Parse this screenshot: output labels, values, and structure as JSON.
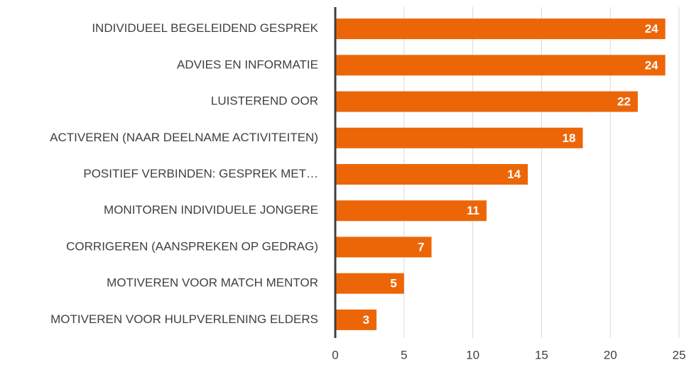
{
  "chart_data": {
    "type": "bar",
    "orientation": "horizontal",
    "categories": [
      "INDIVIDUEEL BEGELEIDEND GESPREK",
      "ADVIES EN INFORMATIE",
      "LUISTEREND OOR",
      "ACTIVEREN (NAAR DEELNAME ACTIVITEITEN)",
      "POSITIEF VERBINDEN: GESPREK MET…",
      "MONITOREN INDIVIDUELE JONGERE",
      "CORRIGEREN (AANSPREKEN OP GEDRAG)",
      "MOTIVEREN VOOR MATCH MENTOR",
      "MOTIVEREN VOOR HULPVERLENING ELDERS"
    ],
    "values": [
      24,
      24,
      22,
      18,
      14,
      11,
      7,
      5,
      3
    ],
    "color": "#ec6608",
    "xlim": [
      0,
      25
    ],
    "xticks": [
      0,
      5,
      10,
      15,
      20,
      25
    ],
    "grid": true
  }
}
